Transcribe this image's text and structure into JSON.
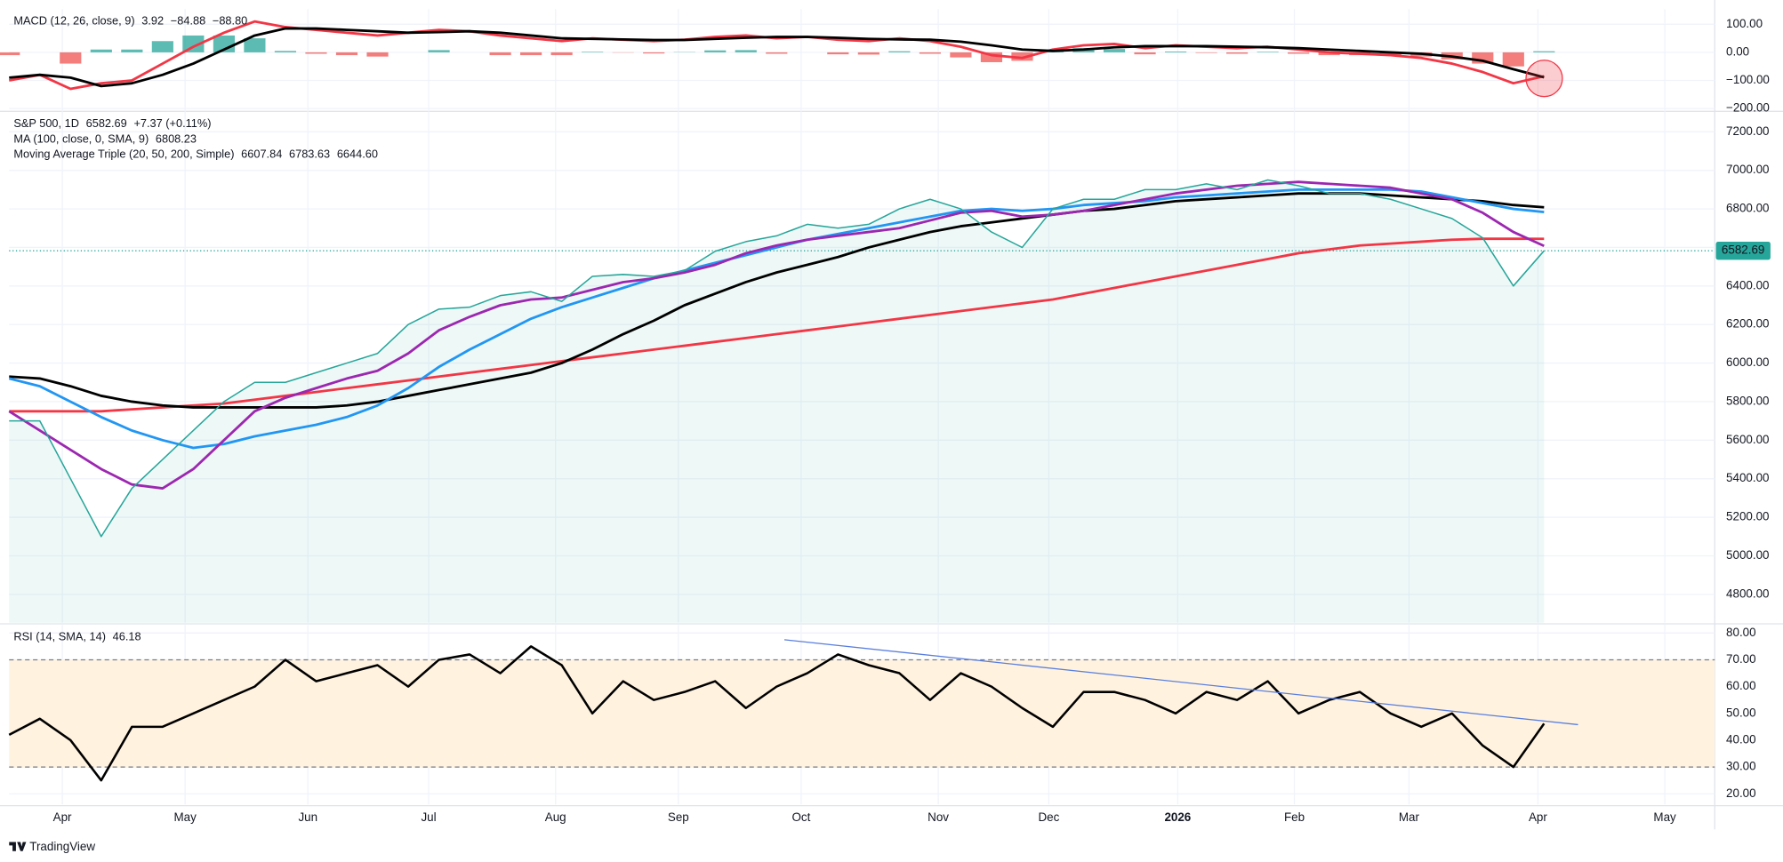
{
  "chart_data": [
    {
      "type": "macd",
      "legend": {
        "title": "MACD (12, 26, close, 9)",
        "value_labels": [
          "3.92",
          "−84.88",
          "−88.80"
        ]
      },
      "ylim": [
        -206,
        154
      ],
      "yticks": [
        {
          "value": 100,
          "label": "100.00"
        },
        {
          "value": 0,
          "label": "0.00"
        },
        {
          "value": -100,
          "label": "−100.00"
        },
        {
          "value": -200,
          "label": "−200.00"
        }
      ],
      "histogram": {
        "color_up": "#26a69a",
        "color_down": "#ef5350",
        "values": [
          -10,
          0,
          -40,
          10,
          10,
          40,
          60,
          60,
          50,
          5,
          -5,
          -10,
          -15,
          0,
          8,
          0,
          -10,
          -10,
          -10,
          2,
          -1,
          -4,
          1,
          7,
          8,
          -5,
          0,
          -7,
          -8,
          4,
          -5,
          -18,
          -35,
          -30,
          5,
          15,
          12,
          -7,
          3,
          -2,
          -5,
          2,
          -5,
          -10,
          -10,
          -10,
          -15,
          -25,
          -40,
          -50,
          3.92
        ]
      },
      "series": [
        {
          "color": "#f23645",
          "values": [
            -100,
            -80,
            -130,
            -110,
            -100,
            -40,
            20,
            70,
            110,
            90,
            80,
            70,
            60,
            70,
            80,
            75,
            60,
            50,
            40,
            50,
            45,
            40,
            45,
            55,
            60,
            50,
            55,
            45,
            40,
            50,
            40,
            20,
            -10,
            -20,
            10,
            25,
            30,
            15,
            25,
            20,
            15,
            20,
            10,
            0,
            -5,
            -10,
            -20,
            -40,
            -70,
            -110,
            -84.88
          ]
        },
        {
          "color": "#000000",
          "values": [
            -90,
            -80,
            -90,
            -120,
            -110,
            -80,
            -40,
            10,
            60,
            85,
            85,
            80,
            75,
            70,
            72,
            75,
            70,
            60,
            50,
            48,
            46,
            44,
            44,
            48,
            52,
            55,
            55,
            52,
            48,
            46,
            45,
            38,
            25,
            10,
            5,
            10,
            18,
            22,
            22,
            22,
            20,
            18,
            15,
            10,
            5,
            0,
            -5,
            -15,
            -30,
            -60,
            -88.8
          ]
        }
      ]
    },
    {
      "type": "line",
      "legend": [
        {
          "title": "S&P 500, 1D",
          "value_labels": [
            "6582.69",
            "+7.37 (+0.11%)"
          ]
        },
        {
          "title": "MA (100, close, 0, SMA, 9)",
          "value_labels": [
            "6808.23"
          ]
        },
        {
          "title": "Moving Average Triple (20, 50, 200, Simple)",
          "value_labels": [
            "6607.84",
            "6783.63",
            "6644.60"
          ]
        }
      ],
      "ylim": [
        4653,
        7306
      ],
      "yticks": [
        {
          "value": 4800,
          "label": "4800.00"
        },
        {
          "value": 5000,
          "label": "5000.00"
        },
        {
          "value": 5200,
          "label": "5200.00"
        },
        {
          "value": 5400,
          "label": "5400.00"
        },
        {
          "value": 5600,
          "label": "5600.00"
        },
        {
          "value": 5800,
          "label": "5800.00"
        },
        {
          "value": 6000,
          "label": "6000.00"
        },
        {
          "value": 6200,
          "label": "6200.00"
        },
        {
          "value": 6400,
          "label": "6400.00"
        },
        {
          "value": 6600,
          "label": "6600.00"
        },
        {
          "value": 6800,
          "label": "6800.00"
        },
        {
          "value": 7000,
          "label": "7000.00"
        },
        {
          "value": 7200,
          "label": "7200.00"
        }
      ],
      "series": [
        {
          "color": "#26a69a",
          "values": [
            5700,
            5700,
            5400,
            5100,
            5350,
            5500,
            5650,
            5800,
            5900,
            5900,
            5950,
            6000,
            6050,
            6200,
            6280,
            6290,
            6350,
            6370,
            6320,
            6450,
            6460,
            6450,
            6480,
            6580,
            6630,
            6660,
            6720,
            6700,
            6720,
            6800,
            6850,
            6800,
            6680,
            6600,
            6800,
            6850,
            6850,
            6900,
            6900,
            6930,
            6900,
            6950,
            6920,
            6880,
            6880,
            6850,
            6800,
            6750,
            6650,
            6400,
            6582.69
          ]
        },
        {
          "color": "#000000",
          "values": [
            5930,
            5920,
            5880,
            5830,
            5800,
            5780,
            5770,
            5770,
            5770,
            5770,
            5770,
            5780,
            5800,
            5830,
            5860,
            5890,
            5920,
            5950,
            6000,
            6070,
            6150,
            6220,
            6300,
            6360,
            6420,
            6470,
            6510,
            6550,
            6600,
            6640,
            6680,
            6710,
            6730,
            6750,
            6770,
            6790,
            6800,
            6820,
            6840,
            6850,
            6860,
            6870,
            6880,
            6880,
            6880,
            6870,
            6860,
            6850,
            6840,
            6820,
            6808.23
          ]
        },
        {
          "color": "#9c27b0",
          "values": [
            5750,
            5650,
            5550,
            5450,
            5370,
            5350,
            5450,
            5600,
            5750,
            5820,
            5870,
            5920,
            5960,
            6050,
            6170,
            6240,
            6300,
            6330,
            6340,
            6380,
            6420,
            6440,
            6470,
            6510,
            6570,
            6610,
            6640,
            6660,
            6680,
            6700,
            6740,
            6780,
            6790,
            6760,
            6770,
            6790,
            6820,
            6850,
            6880,
            6900,
            6920,
            6930,
            6940,
            6930,
            6920,
            6910,
            6880,
            6850,
            6780,
            6680,
            6607.84
          ]
        },
        {
          "color": "#2196f3",
          "values": [
            5920,
            5880,
            5800,
            5720,
            5650,
            5600,
            5560,
            5580,
            5620,
            5650,
            5680,
            5720,
            5780,
            5870,
            5980,
            6070,
            6150,
            6230,
            6290,
            6340,
            6390,
            6440,
            6480,
            6520,
            6560,
            6600,
            6640,
            6670,
            6700,
            6730,
            6760,
            6790,
            6800,
            6790,
            6800,
            6820,
            6830,
            6840,
            6860,
            6870,
            6880,
            6890,
            6900,
            6900,
            6900,
            6900,
            6890,
            6860,
            6830,
            6800,
            6783.63
          ]
        },
        {
          "color": "#f23645",
          "values": [
            5750,
            5750,
            5750,
            5750,
            5760,
            5770,
            5780,
            5790,
            5810,
            5830,
            5850,
            5870,
            5890,
            5910,
            5930,
            5950,
            5970,
            5990,
            6010,
            6030,
            6050,
            6070,
            6090,
            6110,
            6130,
            6150,
            6170,
            6190,
            6210,
            6230,
            6250,
            6270,
            6290,
            6310,
            6330,
            6360,
            6390,
            6420,
            6450,
            6480,
            6510,
            6540,
            6570,
            6590,
            6610,
            6620,
            6630,
            6640,
            6645,
            6645,
            6644.6
          ]
        }
      ]
    },
    {
      "type": "rsi",
      "legend": {
        "title": "RSI (14, SMA, 14)",
        "value_labels": [
          "46.18"
        ]
      },
      "ylim": [
        16,
        83
      ],
      "yticks": [
        {
          "value": 20,
          "label": "20.00"
        },
        {
          "value": 30,
          "label": "30.00"
        },
        {
          "value": 40,
          "label": "40.00"
        },
        {
          "value": 50,
          "label": "50.00"
        },
        {
          "value": 60,
          "label": "60.00"
        },
        {
          "value": 70,
          "label": "70.00"
        },
        {
          "value": 80,
          "label": "80.00"
        }
      ],
      "bands": [
        30,
        70
      ],
      "band_color": "#fff3e0",
      "series": [
        {
          "color": "#000000",
          "values": [
            42,
            48,
            40,
            25,
            45,
            45,
            50,
            55,
            60,
            70,
            62,
            65,
            68,
            60,
            70,
            72,
            65,
            75,
            68,
            50,
            62,
            55,
            58,
            62,
            52,
            60,
            65,
            72,
            68,
            65,
            55,
            65,
            60,
            52,
            45,
            58,
            58,
            55,
            50,
            58,
            55,
            62,
            50,
            55,
            58,
            50,
            45,
            50,
            38,
            30,
            46.18
          ]
        }
      ],
      "trendline": {
        "color": "#5b7fde",
        "x": [
          189.4,
          383.3
        ],
        "values": [
          77.5,
          45.8
        ]
      },
      "x": [
        0,
        7.5,
        15,
        22.5,
        30,
        37.5,
        45,
        52.5,
        60,
        67.5,
        75,
        82.5,
        90,
        97.5,
        105,
        112.5,
        120,
        127.5,
        135,
        142.5,
        150,
        157.5,
        165,
        172.5,
        180,
        187.5,
        195,
        202.5,
        210,
        217.5,
        225,
        232.5,
        240,
        247.5,
        255,
        262.5,
        270,
        277.5,
        285,
        292.5,
        300,
        307.5,
        315,
        322.5,
        330,
        337.5,
        345,
        352.5,
        360,
        367.5,
        375
      ],
      "xlim": [
        0,
        416.7
      ],
      "xticks": [
        {
          "value": 13,
          "label": "Apr"
        },
        {
          "value": 43,
          "label": "May"
        },
        {
          "value": 73,
          "label": "Jun"
        },
        {
          "value": 102.5,
          "label": "Jul"
        },
        {
          "value": 133.5,
          "label": "Aug"
        },
        {
          "value": 163.5,
          "label": "Sep"
        },
        {
          "value": 193.5,
          "label": "Oct"
        },
        {
          "value": 227,
          "label": "Nov"
        },
        {
          "value": 254,
          "label": "Dec"
        },
        {
          "value": 285.5,
          "label": "2026"
        },
        {
          "value": 314,
          "label": "Feb"
        },
        {
          "value": 342,
          "label": "Mar"
        },
        {
          "value": 373.5,
          "label": "Apr"
        },
        {
          "value": 404.5,
          "label": "May"
        }
      ]
    }
  ],
  "footer": "TradingView"
}
